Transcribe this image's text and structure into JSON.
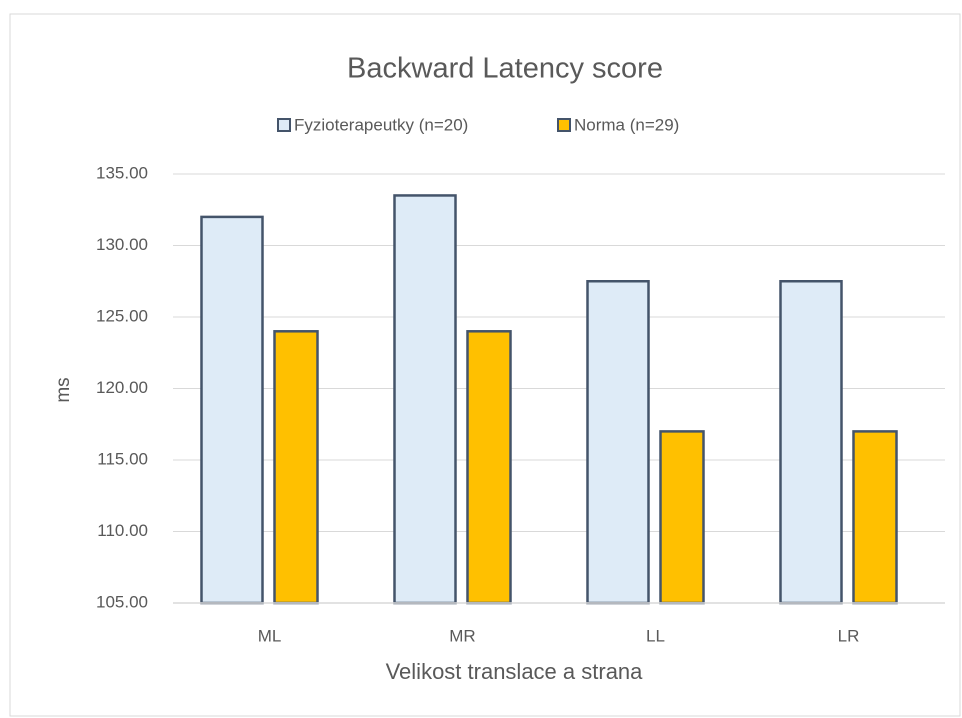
{
  "chart_data": {
    "type": "bar",
    "title": "Backward Latency score",
    "categories": [
      "ML",
      "MR",
      "LL",
      "LR"
    ],
    "series": [
      {
        "name": "Fyzioterapeutky (n=20)",
        "color": "#deebf7",
        "values": [
          132,
          133.5,
          127.5,
          127.5
        ]
      },
      {
        "name": "Norma (n=29)",
        "color": "#ffc000",
        "values": [
          124,
          124,
          117,
          117
        ]
      }
    ],
    "y_label": "ms",
    "x_label": "Velikost translace a strana",
    "ylim": [
      105,
      135
    ],
    "yticks": [
      {
        "value": 105,
        "label": "105.00"
      },
      {
        "value": 110,
        "label": "110.00"
      },
      {
        "value": 115,
        "label": "115.00"
      },
      {
        "value": 120,
        "label": "120.00"
      },
      {
        "value": 125,
        "label": "125.00"
      },
      {
        "value": 130,
        "label": "130.00"
      },
      {
        "value": 135,
        "label": "135.00"
      }
    ],
    "grid": true,
    "legend": "top"
  }
}
